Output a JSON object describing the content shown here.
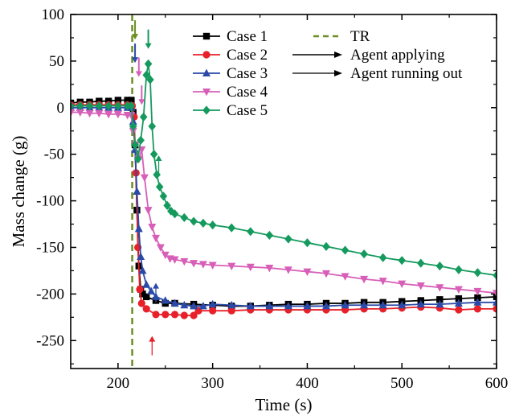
{
  "chart_data": {
    "type": "line",
    "xlabel": "Time (s)",
    "ylabel": "Mass change (g)",
    "xlim": [
      150,
      600
    ],
    "ylim": [
      -280,
      100
    ],
    "x_ticks": [
      200,
      300,
      400,
      500,
      600
    ],
    "y_ticks": [
      100,
      50,
      0,
      -50,
      -100,
      -150,
      -200,
      -250
    ],
    "x_tick_labels": [
      "200",
      "300",
      "400",
      "500",
      "600"
    ],
    "y_tick_labels": [
      "100",
      "50",
      "0",
      "-50",
      "-100",
      "-150",
      "-200",
      "-250"
    ],
    "grid": false,
    "legend_position": "top-right",
    "series": [
      {
        "name": "Case 1",
        "color": "#000000",
        "marker": "square",
        "points": [
          [
            150,
            5
          ],
          [
            160,
            6
          ],
          [
            170,
            6
          ],
          [
            180,
            7
          ],
          [
            190,
            7
          ],
          [
            200,
            8
          ],
          [
            210,
            8
          ],
          [
            214,
            8
          ],
          [
            216,
            -5
          ],
          [
            218,
            -40
          ],
          [
            220,
            -110
          ],
          [
            222,
            -170
          ],
          [
            224,
            -195
          ],
          [
            226,
            -200
          ],
          [
            230,
            -203
          ],
          [
            240,
            -207
          ],
          [
            250,
            -210
          ],
          [
            260,
            -210
          ],
          [
            280,
            -211
          ],
          [
            300,
            -212
          ],
          [
            320,
            -213
          ],
          [
            340,
            -213
          ],
          [
            360,
            -212
          ],
          [
            380,
            -211
          ],
          [
            400,
            -211
          ],
          [
            420,
            -210
          ],
          [
            440,
            -210
          ],
          [
            460,
            -209
          ],
          [
            480,
            -209
          ],
          [
            500,
            -208
          ],
          [
            520,
            -207
          ],
          [
            540,
            -206
          ],
          [
            560,
            -205
          ],
          [
            580,
            -204
          ],
          [
            600,
            -203
          ]
        ]
      },
      {
        "name": "Case 2",
        "color": "#e8202a",
        "marker": "circle",
        "points": [
          [
            150,
            3
          ],
          [
            160,
            3
          ],
          [
            170,
            3
          ],
          [
            180,
            3
          ],
          [
            190,
            3
          ],
          [
            200,
            3
          ],
          [
            210,
            3
          ],
          [
            215,
            2
          ],
          [
            217,
            -10
          ],
          [
            219,
            -70
          ],
          [
            221,
            -150
          ],
          [
            223,
            -195
          ],
          [
            225,
            -210
          ],
          [
            230,
            -216
          ],
          [
            240,
            -222
          ],
          [
            250,
            -222
          ],
          [
            260,
            -222
          ],
          [
            270,
            -223
          ],
          [
            280,
            -223
          ],
          [
            285,
            -218
          ],
          [
            300,
            -218
          ],
          [
            320,
            -218
          ],
          [
            340,
            -217
          ],
          [
            360,
            -217
          ],
          [
            380,
            -217
          ],
          [
            400,
            -217
          ],
          [
            420,
            -217
          ],
          [
            440,
            -217
          ],
          [
            460,
            -216
          ],
          [
            480,
            -216
          ],
          [
            500,
            -215
          ],
          [
            520,
            -214
          ],
          [
            540,
            -215
          ],
          [
            560,
            -217
          ],
          [
            580,
            -216
          ],
          [
            600,
            -216
          ]
        ]
      },
      {
        "name": "Case 3",
        "color": "#2b4aa8",
        "marker": "triangle-up",
        "points": [
          [
            150,
            0
          ],
          [
            160,
            0
          ],
          [
            170,
            0
          ],
          [
            180,
            0
          ],
          [
            190,
            0
          ],
          [
            200,
            0
          ],
          [
            210,
            0
          ],
          [
            214,
            0
          ],
          [
            216,
            -15
          ],
          [
            218,
            -45
          ],
          [
            220,
            -90
          ],
          [
            222,
            -130
          ],
          [
            224,
            -160
          ],
          [
            226,
            -175
          ],
          [
            230,
            -190
          ],
          [
            235,
            -197
          ],
          [
            240,
            -203
          ],
          [
            250,
            -207
          ],
          [
            260,
            -210
          ],
          [
            270,
            -212
          ],
          [
            280,
            -213
          ],
          [
            290,
            -213
          ],
          [
            300,
            -211
          ],
          [
            320,
            -212
          ],
          [
            340,
            -213
          ],
          [
            360,
            -213
          ],
          [
            380,
            -213
          ],
          [
            400,
            -213
          ],
          [
            420,
            -213
          ],
          [
            440,
            -212
          ],
          [
            460,
            -212
          ],
          [
            480,
            -212
          ],
          [
            500,
            -212
          ],
          [
            520,
            -211
          ],
          [
            540,
            -211
          ],
          [
            560,
            -210
          ],
          [
            580,
            -209
          ],
          [
            600,
            -209
          ]
        ]
      },
      {
        "name": "Case 4",
        "color": "#d75fb8",
        "marker": "triangle-down",
        "points": [
          [
            150,
            -5
          ],
          [
            160,
            -5
          ],
          [
            170,
            -6
          ],
          [
            180,
            -6
          ],
          [
            190,
            -7
          ],
          [
            200,
            -7
          ],
          [
            210,
            -8
          ],
          [
            214,
            -8
          ],
          [
            216,
            -25
          ],
          [
            218,
            -40
          ],
          [
            222,
            -55
          ],
          [
            225,
            -45
          ],
          [
            228,
            -75
          ],
          [
            232,
            -110
          ],
          [
            236,
            -128
          ],
          [
            240,
            -140
          ],
          [
            245,
            -150
          ],
          [
            250,
            -158
          ],
          [
            255,
            -162
          ],
          [
            260,
            -163
          ],
          [
            270,
            -165
          ],
          [
            280,
            -167
          ],
          [
            290,
            -168
          ],
          [
            300,
            -169
          ],
          [
            320,
            -170
          ],
          [
            340,
            -171
          ],
          [
            360,
            -172
          ],
          [
            380,
            -174
          ],
          [
            400,
            -176
          ],
          [
            420,
            -178
          ],
          [
            440,
            -181
          ],
          [
            460,
            -184
          ],
          [
            480,
            -186
          ],
          [
            500,
            -189
          ],
          [
            520,
            -191
          ],
          [
            540,
            -193
          ],
          [
            560,
            -195
          ],
          [
            580,
            -197
          ],
          [
            600,
            -199
          ]
        ]
      },
      {
        "name": "Case 5",
        "color": "#159a5e",
        "marker": "diamond",
        "points": [
          [
            150,
            2
          ],
          [
            160,
            2
          ],
          [
            170,
            2
          ],
          [
            180,
            2
          ],
          [
            190,
            2
          ],
          [
            200,
            2
          ],
          [
            210,
            2
          ],
          [
            214,
            2
          ],
          [
            216,
            -20
          ],
          [
            218,
            -40
          ],
          [
            221,
            -55
          ],
          [
            224,
            -35
          ],
          [
            227,
            -10
          ],
          [
            230,
            35
          ],
          [
            232,
            47
          ],
          [
            234,
            30
          ],
          [
            236,
            -20
          ],
          [
            238,
            -50
          ],
          [
            241,
            -72
          ],
          [
            244,
            -85
          ],
          [
            248,
            -95
          ],
          [
            252,
            -105
          ],
          [
            256,
            -111
          ],
          [
            260,
            -114
          ],
          [
            270,
            -118
          ],
          [
            280,
            -122
          ],
          [
            290,
            -124
          ],
          [
            300,
            -126
          ],
          [
            320,
            -129
          ],
          [
            340,
            -133
          ],
          [
            360,
            -137
          ],
          [
            380,
            -141
          ],
          [
            400,
            -145
          ],
          [
            420,
            -149
          ],
          [
            440,
            -153
          ],
          [
            460,
            -157
          ],
          [
            480,
            -161
          ],
          [
            500,
            -164
          ],
          [
            520,
            -167
          ],
          [
            540,
            -170
          ],
          [
            560,
            -174
          ],
          [
            580,
            -177
          ],
          [
            600,
            -180
          ]
        ]
      }
    ],
    "vertical_line": {
      "name": "TR",
      "x": 215,
      "color": "#6b8e23",
      "style": "dashed"
    },
    "arrow_legend": [
      {
        "label": "Agent applying",
        "style": "thick"
      },
      {
        "label": "Agent running out",
        "style": "thin"
      }
    ],
    "annotations": [
      {
        "kind": "agent-applying",
        "x": 218,
        "y": 80,
        "color": "#6b8e23"
      },
      {
        "kind": "agent-applying",
        "x": 218,
        "y": 55,
        "color": "#2b4aa8"
      },
      {
        "kind": "agent-applying",
        "x": 222,
        "y": 40,
        "color": "#d75fb8"
      },
      {
        "kind": "agent-applying",
        "x": 225,
        "y": 10,
        "color": "#d75fb8"
      },
      {
        "kind": "agent-applying",
        "x": 232,
        "y": 70,
        "color": "#159a5e"
      },
      {
        "kind": "agent-running-out",
        "x": 240,
        "y": -195,
        "color": "#2b4aa8"
      },
      {
        "kind": "agent-running-out",
        "x": 243,
        "y": -58,
        "color": "#159a5e"
      },
      {
        "kind": "agent-running-out",
        "x": 236,
        "y": -252,
        "color": "#e8202a"
      }
    ]
  }
}
